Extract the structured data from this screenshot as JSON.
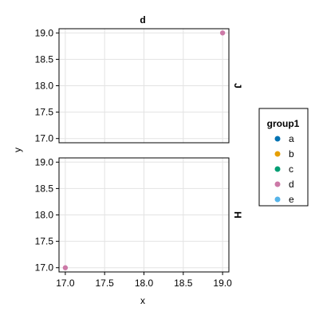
{
  "chart_data": {
    "type": "scatter",
    "title": "d",
    "xlabel": "x",
    "ylabel": "y",
    "xlim": [
      16.92,
      19.08
    ],
    "ylim": [
      16.92,
      19.08
    ],
    "x_ticks": [
      "17.0",
      "17.5",
      "18.0",
      "18.5",
      "19.0"
    ],
    "x_tick_values": [
      17.0,
      17.5,
      18.0,
      18.5,
      19.0
    ],
    "y_ticks": [
      "17.0",
      "17.5",
      "18.0",
      "18.5",
      "19.0"
    ],
    "y_tick_values": [
      17.0,
      17.5,
      18.0,
      18.5,
      19.0
    ],
    "grid": true,
    "facets": [
      {
        "label": "J",
        "points": [
          {
            "x": 19.0,
            "y": 19.0,
            "group": "d"
          }
        ]
      },
      {
        "label": "H",
        "points": [
          {
            "x": 17.0,
            "y": 17.0,
            "group": "d"
          }
        ]
      }
    ],
    "legend": {
      "title": "group1",
      "placement": "right",
      "entries": [
        {
          "label": "a",
          "color": "#0072b2"
        },
        {
          "label": "b",
          "color": "#e69f00"
        },
        {
          "label": "c",
          "color": "#009e73"
        },
        {
          "label": "d",
          "color": "#cc79a7"
        },
        {
          "label": "e",
          "color": "#56b4e9"
        }
      ]
    }
  }
}
